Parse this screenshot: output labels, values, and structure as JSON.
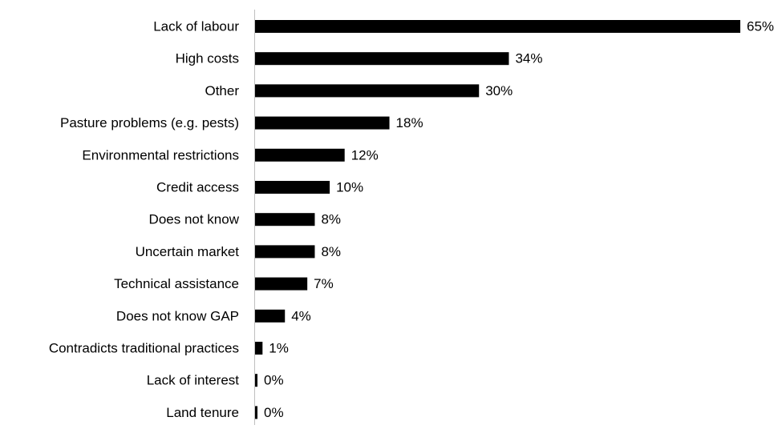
{
  "chart_data": {
    "type": "bar",
    "orientation": "horizontal",
    "title": "",
    "xlabel": "",
    "ylabel": "",
    "categories": [
      "Lack of labour",
      "High costs",
      "Other",
      "Pasture problems (e.g. pests)",
      "Environmental restrictions",
      "Credit access",
      "Does not know",
      "Uncertain market",
      "Technical assistance",
      "Does not know GAP",
      "Contradicts traditional practices",
      "Lack of interest",
      "Land tenure"
    ],
    "values": [
      65,
      34,
      30,
      18,
      12,
      10,
      8,
      8,
      7,
      4,
      1,
      0,
      0
    ],
    "value_labels": [
      "65%",
      "34%",
      "30%",
      "18%",
      "12%",
      "10%",
      "8%",
      "8%",
      "7%",
      "4%",
      "1%",
      "0%",
      "0%"
    ],
    "unit": "%",
    "xlim": [
      0,
      65
    ],
    "grid": false,
    "legend": "none",
    "bar_color": "#000000"
  }
}
